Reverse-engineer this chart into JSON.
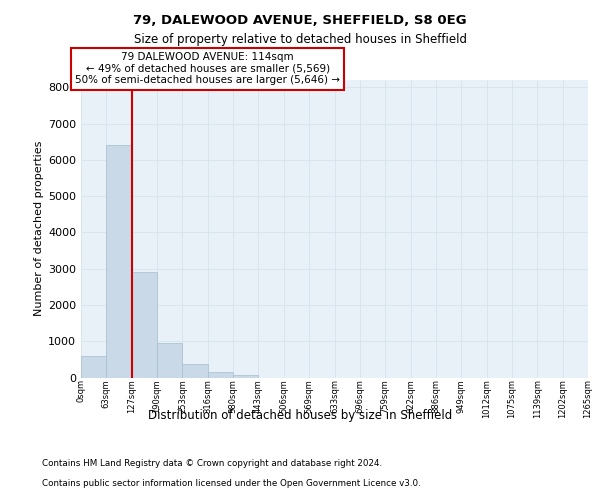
{
  "title_line1": "79, DALEWOOD AVENUE, SHEFFIELD, S8 0EG",
  "title_line2": "Size of property relative to detached houses in Sheffield",
  "xlabel": "Distribution of detached houses by size in Sheffield",
  "ylabel": "Number of detached properties",
  "bar_values": [
    600,
    6400,
    2900,
    960,
    360,
    150,
    80,
    0,
    0,
    0,
    0,
    0,
    0,
    0,
    0,
    0,
    0,
    0,
    0,
    0
  ],
  "bar_labels": [
    "0sqm",
    "63sqm",
    "127sqm",
    "190sqm",
    "253sqm",
    "316sqm",
    "380sqm",
    "443sqm",
    "506sqm",
    "569sqm",
    "633sqm",
    "696sqm",
    "759sqm",
    "822sqm",
    "886sqm",
    "949sqm",
    "1012sqm",
    "1075sqm",
    "1139sqm",
    "1202sqm",
    "1265sqm"
  ],
  "bar_color": "#c9d9e8",
  "bar_edge_color": "#a8bece",
  "grid_color": "#d8e4ee",
  "bg_color": "#e8f0f8",
  "vline_x": 1.5,
  "vline_color": "#cc0000",
  "annotation_text": "79 DALEWOOD AVENUE: 114sqm\n← 49% of detached houses are smaller (5,569)\n50% of semi-detached houses are larger (5,646) →",
  "ylim": [
    0,
    8200
  ],
  "yticks": [
    0,
    1000,
    2000,
    3000,
    4000,
    5000,
    6000,
    7000,
    8000
  ],
  "footer_line1": "Contains HM Land Registry data © Crown copyright and database right 2024.",
  "footer_line2": "Contains public sector information licensed under the Open Government Licence v3.0."
}
